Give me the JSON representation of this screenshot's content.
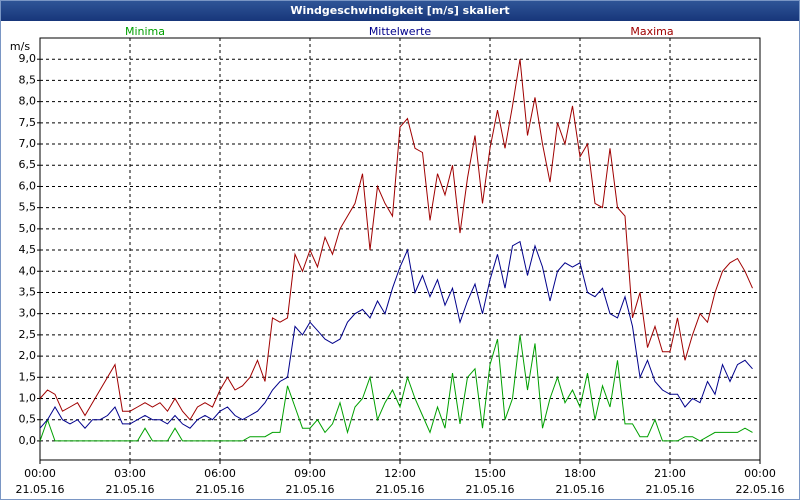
{
  "chart_data": {
    "type": "line",
    "title": "Windgeschwindigkeit [m/s] skaliert",
    "y_label": "m/s",
    "x": [
      0,
      0.25,
      0.5,
      0.75,
      1,
      1.25,
      1.5,
      1.75,
      2,
      2.25,
      2.5,
      2.75,
      3,
      3.25,
      3.5,
      3.75,
      4,
      4.25,
      4.5,
      4.75,
      5,
      5.25,
      5.5,
      5.75,
      6,
      6.25,
      6.5,
      6.75,
      7,
      7.25,
      7.5,
      7.75,
      8,
      8.25,
      8.5,
      8.75,
      9,
      9.25,
      9.5,
      9.75,
      10,
      10.25,
      10.5,
      10.75,
      11,
      11.25,
      11.5,
      11.75,
      12,
      12.25,
      12.5,
      12.75,
      13,
      13.25,
      13.5,
      13.75,
      14,
      14.25,
      14.5,
      14.75,
      15,
      15.25,
      15.5,
      15.75,
      16,
      16.25,
      16.5,
      16.75,
      17,
      17.25,
      17.5,
      17.75,
      18,
      18.25,
      18.5,
      18.75,
      19,
      19.25,
      19.5,
      19.75,
      20,
      20.25,
      20.5,
      20.75,
      21,
      21.25,
      21.5,
      21.75,
      22,
      22.25,
      22.5,
      22.75,
      23,
      23.25,
      23.5,
      23.75
    ],
    "xlim": [
      0,
      24
    ],
    "xticks": [
      {
        "value": 0,
        "label": "00:00"
      },
      {
        "value": 3,
        "label": "03:00"
      },
      {
        "value": 6,
        "label": "06:00"
      },
      {
        "value": 9,
        "label": "09:00"
      },
      {
        "value": 12,
        "label": "12:00"
      },
      {
        "value": 15,
        "label": "15:00"
      },
      {
        "value": 18,
        "label": "18:00"
      },
      {
        "value": 21,
        "label": "21:00"
      },
      {
        "value": 24,
        "label": "00:00"
      }
    ],
    "xtick_dates": [
      "21.05.16",
      "21.05.16",
      "21.05.16",
      "21.05.16",
      "21.05.16",
      "21.05.16",
      "21.05.16",
      "21.05.16",
      "22.05.16"
    ],
    "ylim": [
      -0.45,
      9.5
    ],
    "yticks": [
      {
        "value": 0,
        "label": "0,0"
      },
      {
        "value": 0.5,
        "label": "0,5"
      },
      {
        "value": 1,
        "label": "1,0"
      },
      {
        "value": 1.5,
        "label": "1,5"
      },
      {
        "value": 2,
        "label": "2,0"
      },
      {
        "value": 2.5,
        "label": "2,5"
      },
      {
        "value": 3,
        "label": "3,0"
      },
      {
        "value": 3.5,
        "label": "3,5"
      },
      {
        "value": 4,
        "label": "4,0"
      },
      {
        "value": 4.5,
        "label": "4,5"
      },
      {
        "value": 5,
        "label": "5,0"
      },
      {
        "value": 5.5,
        "label": "5,5"
      },
      {
        "value": 6,
        "label": "6,0"
      },
      {
        "value": 6.5,
        "label": "6,5"
      },
      {
        "value": 7,
        "label": "7,0"
      },
      {
        "value": 7.5,
        "label": "7,5"
      },
      {
        "value": 8,
        "label": "8,0"
      },
      {
        "value": 8.5,
        "label": "8,5"
      },
      {
        "value": 9,
        "label": "9,0"
      }
    ],
    "grid": true,
    "series": [
      {
        "name": "Minima",
        "color": "#00a000",
        "values": [
          0.0,
          0.5,
          0.0,
          0.0,
          0.0,
          0.0,
          0.0,
          0.0,
          0.0,
          0.0,
          0.0,
          0.0,
          0.0,
          0.0,
          0.3,
          0.0,
          0.0,
          0.0,
          0.3,
          0.0,
          0.0,
          0.0,
          0.0,
          0.0,
          0.0,
          0.0,
          0.0,
          0.0,
          0.1,
          0.1,
          0.1,
          0.2,
          0.2,
          1.3,
          0.8,
          0.3,
          0.3,
          0.5,
          0.2,
          0.4,
          0.9,
          0.2,
          0.8,
          1.0,
          1.5,
          0.5,
          0.9,
          1.2,
          0.8,
          1.5,
          1.0,
          0.6,
          0.2,
          0.8,
          0.3,
          1.6,
          0.4,
          1.5,
          1.7,
          0.3,
          1.8,
          2.4,
          0.5,
          1.0,
          2.5,
          1.2,
          2.3,
          0.3,
          1.0,
          1.5,
          0.9,
          1.2,
          0.8,
          1.6,
          0.5,
          1.3,
          0.8,
          1.9,
          0.4,
          0.4,
          0.1,
          0.1,
          0.5,
          0.0,
          0.0,
          0.0,
          0.1,
          0.1,
          0.0,
          0.1,
          0.2,
          0.2,
          0.2,
          0.2,
          0.3,
          0.2
        ]
      },
      {
        "name": "Mittelwerte",
        "color": "#00008b",
        "values": [
          0.3,
          0.5,
          0.8,
          0.5,
          0.4,
          0.5,
          0.3,
          0.5,
          0.5,
          0.6,
          0.8,
          0.4,
          0.4,
          0.5,
          0.6,
          0.5,
          0.5,
          0.4,
          0.6,
          0.4,
          0.3,
          0.5,
          0.6,
          0.5,
          0.7,
          0.8,
          0.6,
          0.5,
          0.6,
          0.7,
          0.9,
          1.2,
          1.4,
          1.5,
          2.7,
          2.5,
          2.8,
          2.6,
          2.4,
          2.3,
          2.4,
          2.8,
          3.0,
          3.1,
          2.9,
          3.3,
          3.0,
          3.6,
          4.1,
          4.5,
          3.5,
          3.9,
          3.4,
          3.8,
          3.2,
          3.6,
          2.8,
          3.3,
          3.7,
          3.0,
          3.8,
          4.4,
          3.6,
          4.6,
          4.7,
          3.9,
          4.6,
          4.1,
          3.3,
          4.0,
          4.2,
          4.1,
          4.2,
          3.5,
          3.4,
          3.6,
          3.0,
          2.9,
          3.4,
          2.7,
          1.5,
          1.9,
          1.4,
          1.2,
          1.1,
          1.1,
          0.8,
          1.0,
          0.9,
          1.4,
          1.1,
          1.8,
          1.4,
          1.8,
          1.9,
          1.7
        ]
      },
      {
        "name": "Maxima",
        "color": "#a00000",
        "values": [
          1.0,
          1.2,
          1.1,
          0.7,
          0.8,
          0.9,
          0.6,
          0.9,
          1.2,
          1.5,
          1.8,
          0.7,
          0.7,
          0.8,
          0.9,
          0.8,
          0.9,
          0.7,
          1.0,
          0.7,
          0.5,
          0.8,
          0.9,
          0.8,
          1.2,
          1.5,
          1.2,
          1.3,
          1.5,
          1.9,
          1.4,
          2.9,
          2.8,
          2.9,
          4.4,
          4.0,
          4.5,
          4.1,
          4.8,
          4.4,
          5.0,
          5.3,
          5.6,
          6.3,
          4.5,
          6.0,
          5.6,
          5.3,
          7.4,
          7.6,
          6.9,
          6.8,
          5.2,
          6.3,
          5.8,
          6.5,
          4.9,
          6.2,
          7.2,
          5.6,
          6.9,
          7.8,
          6.9,
          7.9,
          9.0,
          7.2,
          8.1,
          7.0,
          6.1,
          7.5,
          7.0,
          7.9,
          6.7,
          7.0,
          5.6,
          5.5,
          6.9,
          5.5,
          5.3,
          2.9,
          3.5,
          2.2,
          2.7,
          2.1,
          2.1,
          2.9,
          1.9,
          2.5,
          3.0,
          2.8,
          3.5,
          4.0,
          4.2,
          4.3,
          4.0,
          3.6
        ]
      }
    ]
  }
}
